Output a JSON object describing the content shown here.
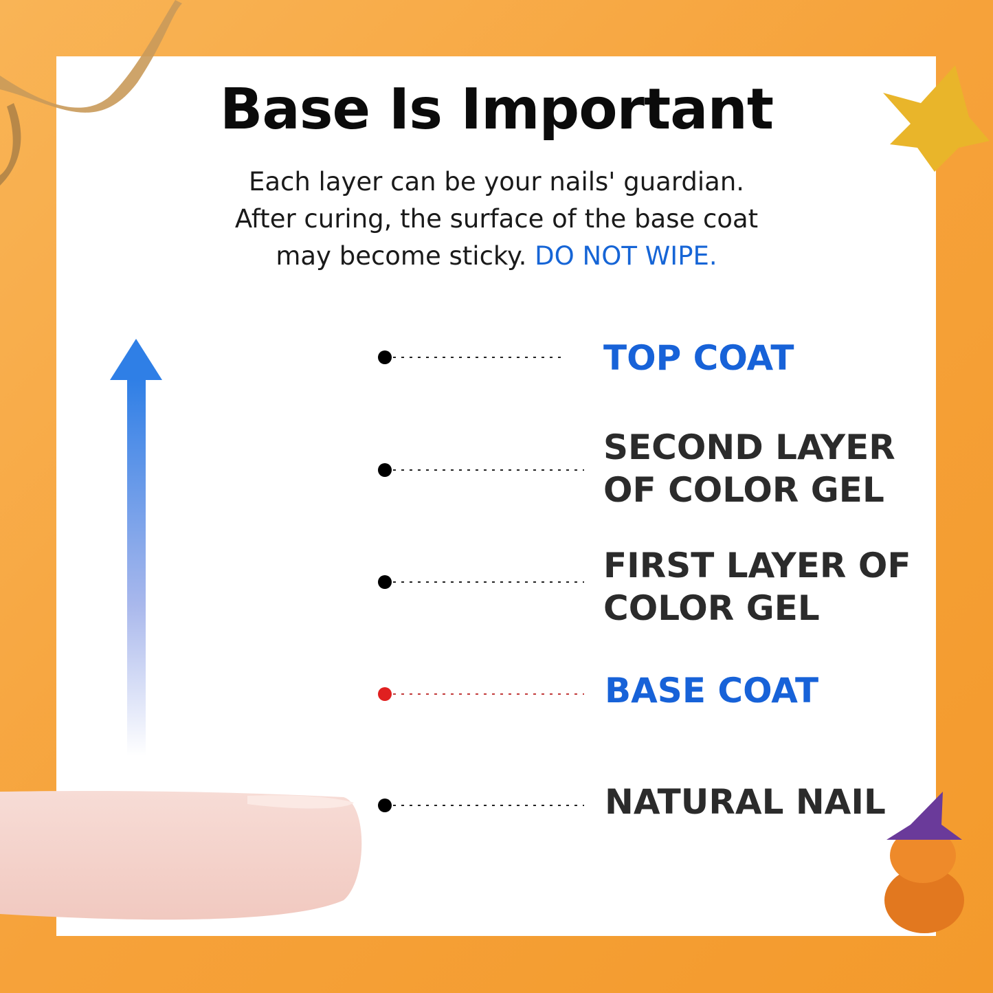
{
  "title": "Base Is Important",
  "subtitle": {
    "line1": "Each layer can be your nails' guardian.",
    "line2": "After curing, the surface of the base coat",
    "line3": "may become sticky.",
    "highlight": "DO NOT WIPE."
  },
  "colors": {
    "accent_blue": "#1762d8",
    "background_orange": "#f6a23a",
    "second_gel": "#c8105a",
    "first_gel": "#f2187f",
    "base_coat_dot": "#e02020"
  },
  "layers": [
    {
      "label": "TOP COAT",
      "highlight": true,
      "nail_color": "#f1f1f1"
    },
    {
      "label": "SECOND LAYER OF COLOR GEL",
      "line1": "SECOND LAYER",
      "line2": "OF COLOR GEL",
      "highlight": false,
      "nail_color": "#c8105a"
    },
    {
      "label": "FIRST LAYER OF COLOR GEL",
      "line1": "FIRST LAYER OF",
      "line2": "COLOR GEL",
      "highlight": false,
      "nail_color": "#f2187f"
    },
    {
      "label": "BASE COAT",
      "highlight": true,
      "nail_color": "#f1f1f1"
    },
    {
      "label": "NATURAL NAIL",
      "highlight": false
    }
  ]
}
